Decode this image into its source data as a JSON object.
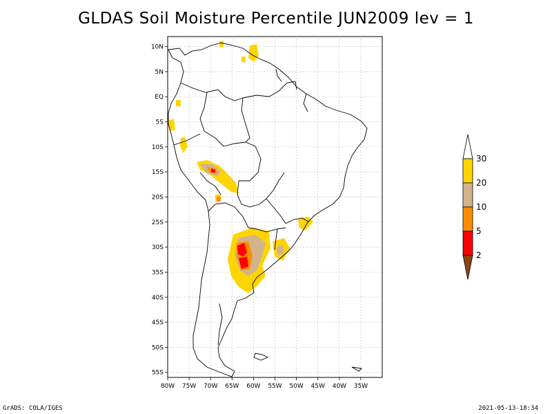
{
  "title": "GLDAS Soil Moisture Percentile JUN2009 lev = 1",
  "footer": {
    "left": "GrADS: COLA/IGES",
    "right": "2021-05-13-18:34"
  },
  "map": {
    "region": "South America",
    "lon_range": [
      -80,
      -30
    ],
    "lat_range": [
      -56,
      12
    ],
    "lon_ticks": [
      {
        "value": -80,
        "label": "80W"
      },
      {
        "value": -75,
        "label": "75W"
      },
      {
        "value": -70,
        "label": "70W"
      },
      {
        "value": -65,
        "label": "65W"
      },
      {
        "value": -60,
        "label": "60W"
      },
      {
        "value": -55,
        "label": "55W"
      },
      {
        "value": -50,
        "label": "50W"
      },
      {
        "value": -45,
        "label": "45W"
      },
      {
        "value": -40,
        "label": "40W"
      },
      {
        "value": -35,
        "label": "35W"
      }
    ],
    "lat_ticks": [
      {
        "value": 10,
        "label": "10N"
      },
      {
        "value": 5,
        "label": "5N"
      },
      {
        "value": 0,
        "label": "EQ"
      },
      {
        "value": -5,
        "label": "5S"
      },
      {
        "value": -10,
        "label": "10S"
      },
      {
        "value": -15,
        "label": "15S"
      },
      {
        "value": -20,
        "label": "20S"
      },
      {
        "value": -25,
        "label": "25S"
      },
      {
        "value": -30,
        "label": "30S"
      },
      {
        "value": -35,
        "label": "35S"
      },
      {
        "value": -40,
        "label": "40S"
      },
      {
        "value": -45,
        "label": "45S"
      },
      {
        "value": -50,
        "label": "50S"
      },
      {
        "value": -55,
        "label": "55S"
      }
    ],
    "grid": true
  },
  "colorbar": {
    "labels": [
      "30",
      "20",
      "10",
      "5",
      "2"
    ],
    "colors": [
      "#fed500",
      "#d2b48c",
      "#ff8c00",
      "#ff0000",
      "#8b4513"
    ]
  }
}
